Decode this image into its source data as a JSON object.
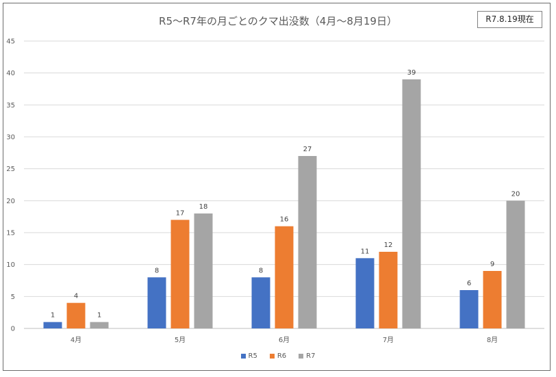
{
  "stamp": "R7.8.19現在",
  "chart_data": {
    "type": "bar",
    "title": "R5～R7年の月ごとのクマ出没数（4月～8月19日）",
    "categories": [
      "4月",
      "5月",
      "6月",
      "7月",
      "8月"
    ],
    "series": [
      {
        "name": "R5",
        "color": "#4472c4",
        "values": [
          1,
          8,
          8,
          11,
          6
        ]
      },
      {
        "name": "R6",
        "color": "#ed7d31",
        "values": [
          4,
          17,
          16,
          12,
          9
        ]
      },
      {
        "name": "R7",
        "color": "#a5a5a5",
        "values": [
          1,
          18,
          27,
          39,
          20
        ]
      }
    ],
    "ylim": [
      0,
      45
    ],
    "yticks": [
      0,
      5,
      10,
      15,
      20,
      25,
      30,
      35,
      40,
      45
    ],
    "xlabel": "",
    "ylabel": "",
    "grid": true,
    "legend": "bottom-center"
  }
}
